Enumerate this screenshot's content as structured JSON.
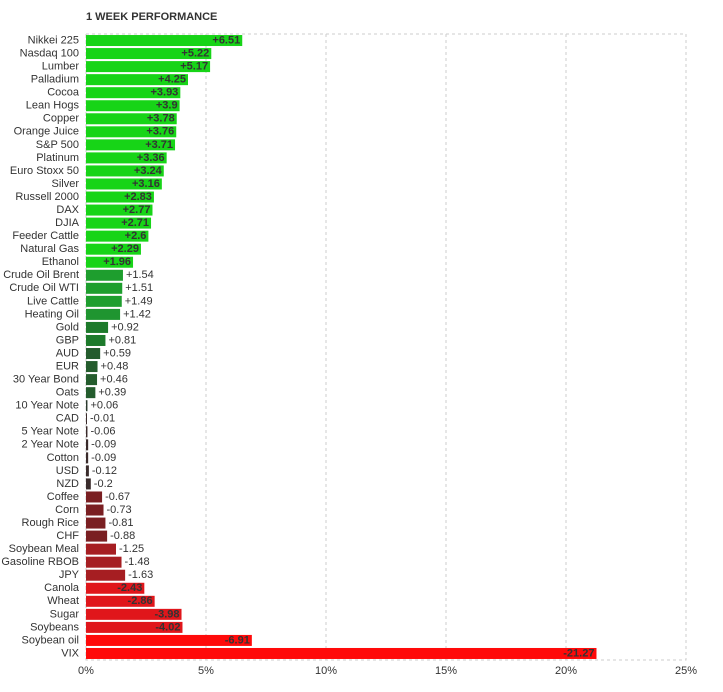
{
  "chart_data": {
    "type": "bar",
    "orientation": "horizontal",
    "title": "1 WEEK PERFORMANCE",
    "categories": [
      "Nikkei 225",
      "Nasdaq 100",
      "Lumber",
      "Palladium",
      "Cocoa",
      "Lean Hogs",
      "Copper",
      "Orange Juice",
      "S&P 500",
      "Platinum",
      "Euro Stoxx 50",
      "Silver",
      "Russell 2000",
      "DAX",
      "DJIA",
      "Feeder Cattle",
      "Natural Gas",
      "Ethanol",
      "Crude Oil Brent",
      "Crude Oil WTI",
      "Live Cattle",
      "Heating Oil",
      "Gold",
      "GBP",
      "AUD",
      "EUR",
      "30 Year Bond",
      "Oats",
      "10 Year Note",
      "CAD",
      "5 Year Note",
      "2 Year Note",
      "Cotton",
      "USD",
      "NZD",
      "Coffee",
      "Corn",
      "Rough Rice",
      "CHF",
      "Soybean Meal",
      "Gasoline RBOB",
      "JPY",
      "Canola",
      "Wheat",
      "Sugar",
      "Soybeans",
      "Soybean oil",
      "VIX"
    ],
    "values": [
      6.51,
      5.22,
      5.17,
      4.25,
      3.93,
      3.9,
      3.78,
      3.76,
      3.71,
      3.36,
      3.24,
      3.16,
      2.83,
      2.77,
      2.71,
      2.6,
      2.29,
      1.96,
      1.54,
      1.51,
      1.49,
      1.42,
      0.92,
      0.81,
      0.59,
      0.48,
      0.46,
      0.39,
      0.06,
      -0.01,
      -0.06,
      -0.09,
      -0.09,
      -0.12,
      -0.2,
      -0.67,
      -0.73,
      -0.81,
      -0.88,
      -1.25,
      -1.48,
      -1.63,
      -2.43,
      -2.86,
      -3.98,
      -4.02,
      -6.91,
      -21.27
    ],
    "value_labels": [
      "+6.51",
      "+5.22",
      "+5.17",
      "+4.25",
      "+3.93",
      "+3.9",
      "+3.78",
      "+3.76",
      "+3.71",
      "+3.36",
      "+3.24",
      "+3.16",
      "+2.83",
      "+2.77",
      "+2.71",
      "+2.6",
      "+2.29",
      "+1.96",
      "+1.54",
      "+1.51",
      "+1.49",
      "+1.42",
      "+0.92",
      "+0.81",
      "+0.59",
      "+0.48",
      "+0.46",
      "+0.39",
      "+0.06",
      "-0.01",
      "-0.06",
      "-0.09",
      "-0.09",
      "-0.12",
      "-0.2",
      "-0.67",
      "-0.73",
      "-0.81",
      "-0.88",
      "-1.25",
      "-1.48",
      "-1.63",
      "-2.43",
      "-2.86",
      "-3.98",
      "-4.02",
      "-6.91",
      "-21.27"
    ],
    "colors": [
      "#17d417",
      "#17d417",
      "#17d417",
      "#17d417",
      "#17d417",
      "#17d417",
      "#17d417",
      "#17d417",
      "#17d417",
      "#17d417",
      "#17d417",
      "#17d417",
      "#17d417",
      "#17d417",
      "#17d417",
      "#17d417",
      "#17d417",
      "#17d417",
      "#1e9e2e",
      "#1e9e2e",
      "#1e9e2e",
      "#1f9530",
      "#1d7a2b",
      "#1d7a2b",
      "#245c2d",
      "#245c2d",
      "#245c2d",
      "#245c2d",
      "#2b3a2d",
      "#3a2b2b",
      "#3a2b2b",
      "#3a2b2b",
      "#3a2b2b",
      "#3a2b2b",
      "#3a2b2b",
      "#7a1f22",
      "#7a1f22",
      "#7a1f22",
      "#7a1f22",
      "#a61e22",
      "#a61e22",
      "#a61e22",
      "#e0161b",
      "#e0161b",
      "#e0161b",
      "#e0161b",
      "#ff0a0a",
      "#ff0a0a"
    ],
    "xlim": [
      0,
      25
    ],
    "xticks": [
      {
        "value": 0,
        "label": "0%"
      },
      {
        "value": 5,
        "label": "5%"
      },
      {
        "value": 10,
        "label": "10%"
      },
      {
        "value": 15,
        "label": "15%"
      },
      {
        "value": 20,
        "label": "20%"
      },
      {
        "value": 25,
        "label": "25%"
      }
    ],
    "grid": true
  }
}
